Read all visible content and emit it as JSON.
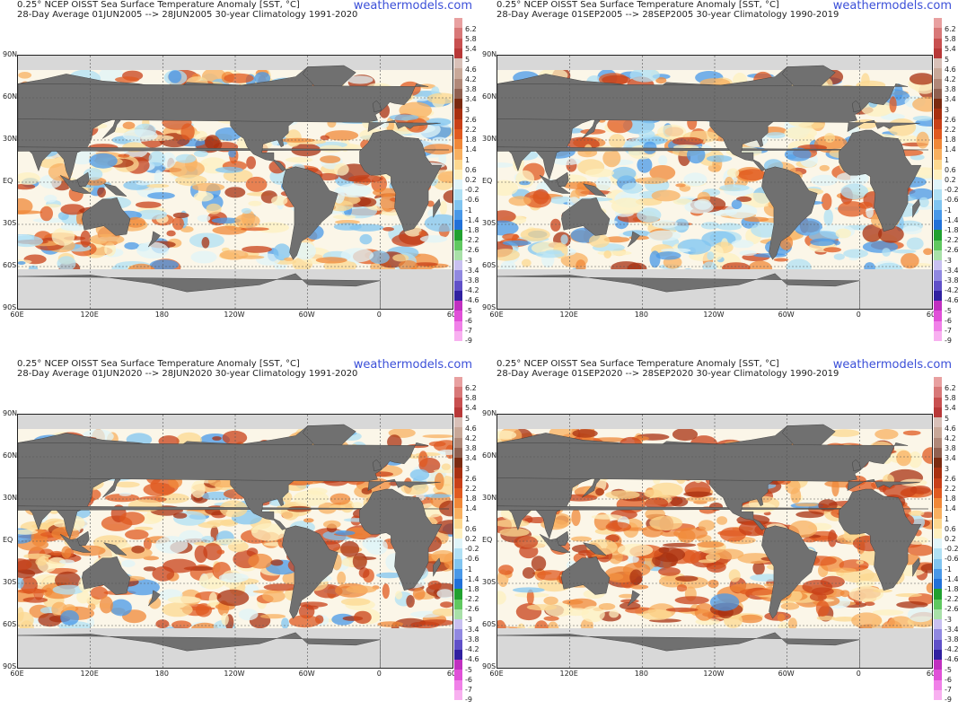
{
  "panels": [
    {
      "title_line1": "0.25° NCEP OISST Sea Surface Temperature Anomaly [SST, °C]",
      "title_line2": "28-Day Average 01JUN2005 --> 28JUN2005   30-year Climatology 1991-2020",
      "brand": "weathermodels.com",
      "warmth": 0.35
    },
    {
      "title_line1": "0.25° NCEP OISST Sea Surface Temperature Anomaly [SST, °C]",
      "title_line2": "28-Day Average 01SEP2005 --> 28SEP2005   30-year Climatology 1990-2019",
      "brand": "weathermodels.com",
      "warmth": 0.3
    },
    {
      "title_line1": "0.25° NCEP OISST Sea Surface Temperature Anomaly [SST, °C]",
      "title_line2": "28-Day Average 01JUN2020 --> 28JUN2020   30-year Climatology 1991-2020",
      "brand": "weathermodels.com",
      "warmth": 0.55
    },
    {
      "title_line1": "0.25° NCEP OISST Sea Surface Temperature Anomaly [SST, °C]",
      "title_line2": "28-Day Average 01SEP2020 --> 28SEP2020   30-year Climatology 1990-2019",
      "brand": "weathermodels.com",
      "warmth": 0.7
    }
  ],
  "lat_labels": [
    "90N",
    "60N",
    "30N",
    "EQ",
    "30S",
    "60S",
    "90S"
  ],
  "lon_labels": [
    "60E",
    "120E",
    "180",
    "120W",
    "60W",
    "0",
    "60"
  ],
  "colorbar": {
    "ticks": [
      "6.2",
      "5.8",
      "5.4",
      "5",
      "4.6",
      "4.2",
      "3.8",
      "3.4",
      "3",
      "2.6",
      "2.2",
      "1.8",
      "1.4",
      "1",
      "0.6",
      "0.2",
      "-0.2",
      "-0.6",
      "-1",
      "-1.4",
      "-1.8",
      "-2.2",
      "-2.6",
      "-3",
      "-3.4",
      "-3.8",
      "-4.2",
      "-4.6",
      "-5",
      "-6",
      "-7",
      "-9"
    ],
    "colors": [
      "#e8a0a0",
      "#d87878",
      "#c85050",
      "#b83838",
      "#d8c0b8",
      "#c8a898",
      "#b08878",
      "#906050",
      "#7a2a10",
      "#a83010",
      "#c84018",
      "#e05a20",
      "#f08838",
      "#f8b060",
      "#fcd890",
      "#fdf0c0",
      "#e0f4f8",
      "#b0e0f4",
      "#80c4f0",
      "#4898e8",
      "#2070d8",
      "#20a030",
      "#60c860",
      "#a8e0a8",
      "#c8c0f0",
      "#9088e0",
      "#6050c8",
      "#3020a0",
      "#c030c0",
      "#e050d8",
      "#f080e8",
      "#f8b0f0"
    ]
  },
  "land_color": "#707070",
  "sea_ice_color": "#d8d8d8"
}
